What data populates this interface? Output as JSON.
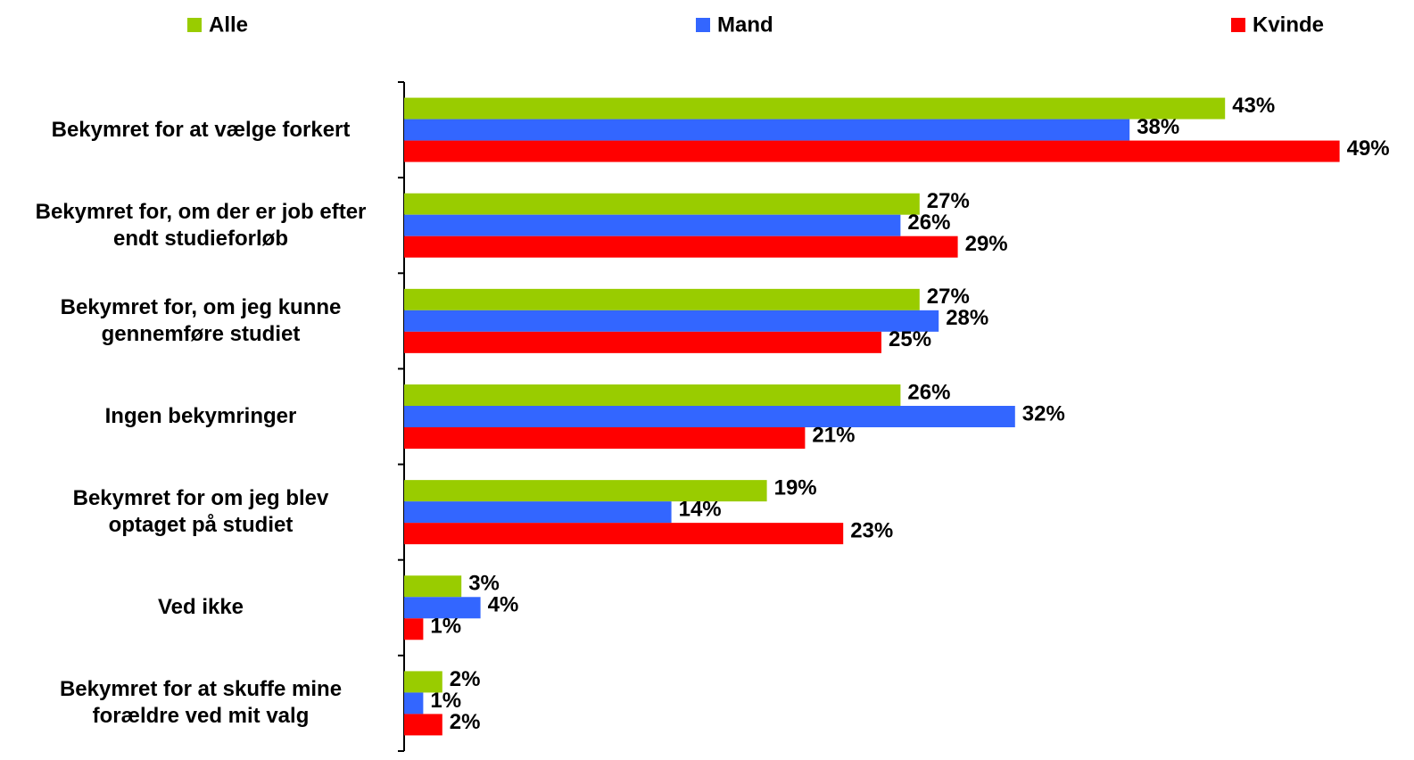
{
  "chart_data": {
    "type": "bar",
    "orientation": "horizontal",
    "categories": [
      "Bekymret for at vælge forkert",
      "Bekymret for, om der er job efter\nendt studieforløb",
      "Bekymret for, om jeg kunne\ngennemføre studiet",
      "Ingen bekymringer",
      "Bekymret for om jeg blev\noptaget på studiet",
      "Ved ikke",
      "Bekymret for at skuffe mine\nforældre ved mit valg"
    ],
    "series": [
      {
        "name": "Alle",
        "color": "#99cc00",
        "values": [
          43,
          27,
          27,
          26,
          19,
          3,
          2
        ],
        "value_labels": [
          "43%",
          "27%",
          "27%",
          "26%",
          "19%",
          "3%",
          "2%"
        ]
      },
      {
        "name": "Mand",
        "color": "#3366ff",
        "values": [
          38,
          26,
          28,
          32,
          14,
          4,
          1
        ],
        "value_labels": [
          "38%",
          "26%",
          "28%",
          "32%",
          "14%",
          "4%",
          "1%"
        ]
      },
      {
        "name": "Kvinde",
        "color": "#ff0000",
        "values": [
          49,
          29,
          25,
          21,
          23,
          1,
          2
        ],
        "value_labels": [
          "49%",
          "29%",
          "25%",
          "21%",
          "23%",
          "1%",
          "2%"
        ]
      }
    ],
    "legend": "top"
  }
}
